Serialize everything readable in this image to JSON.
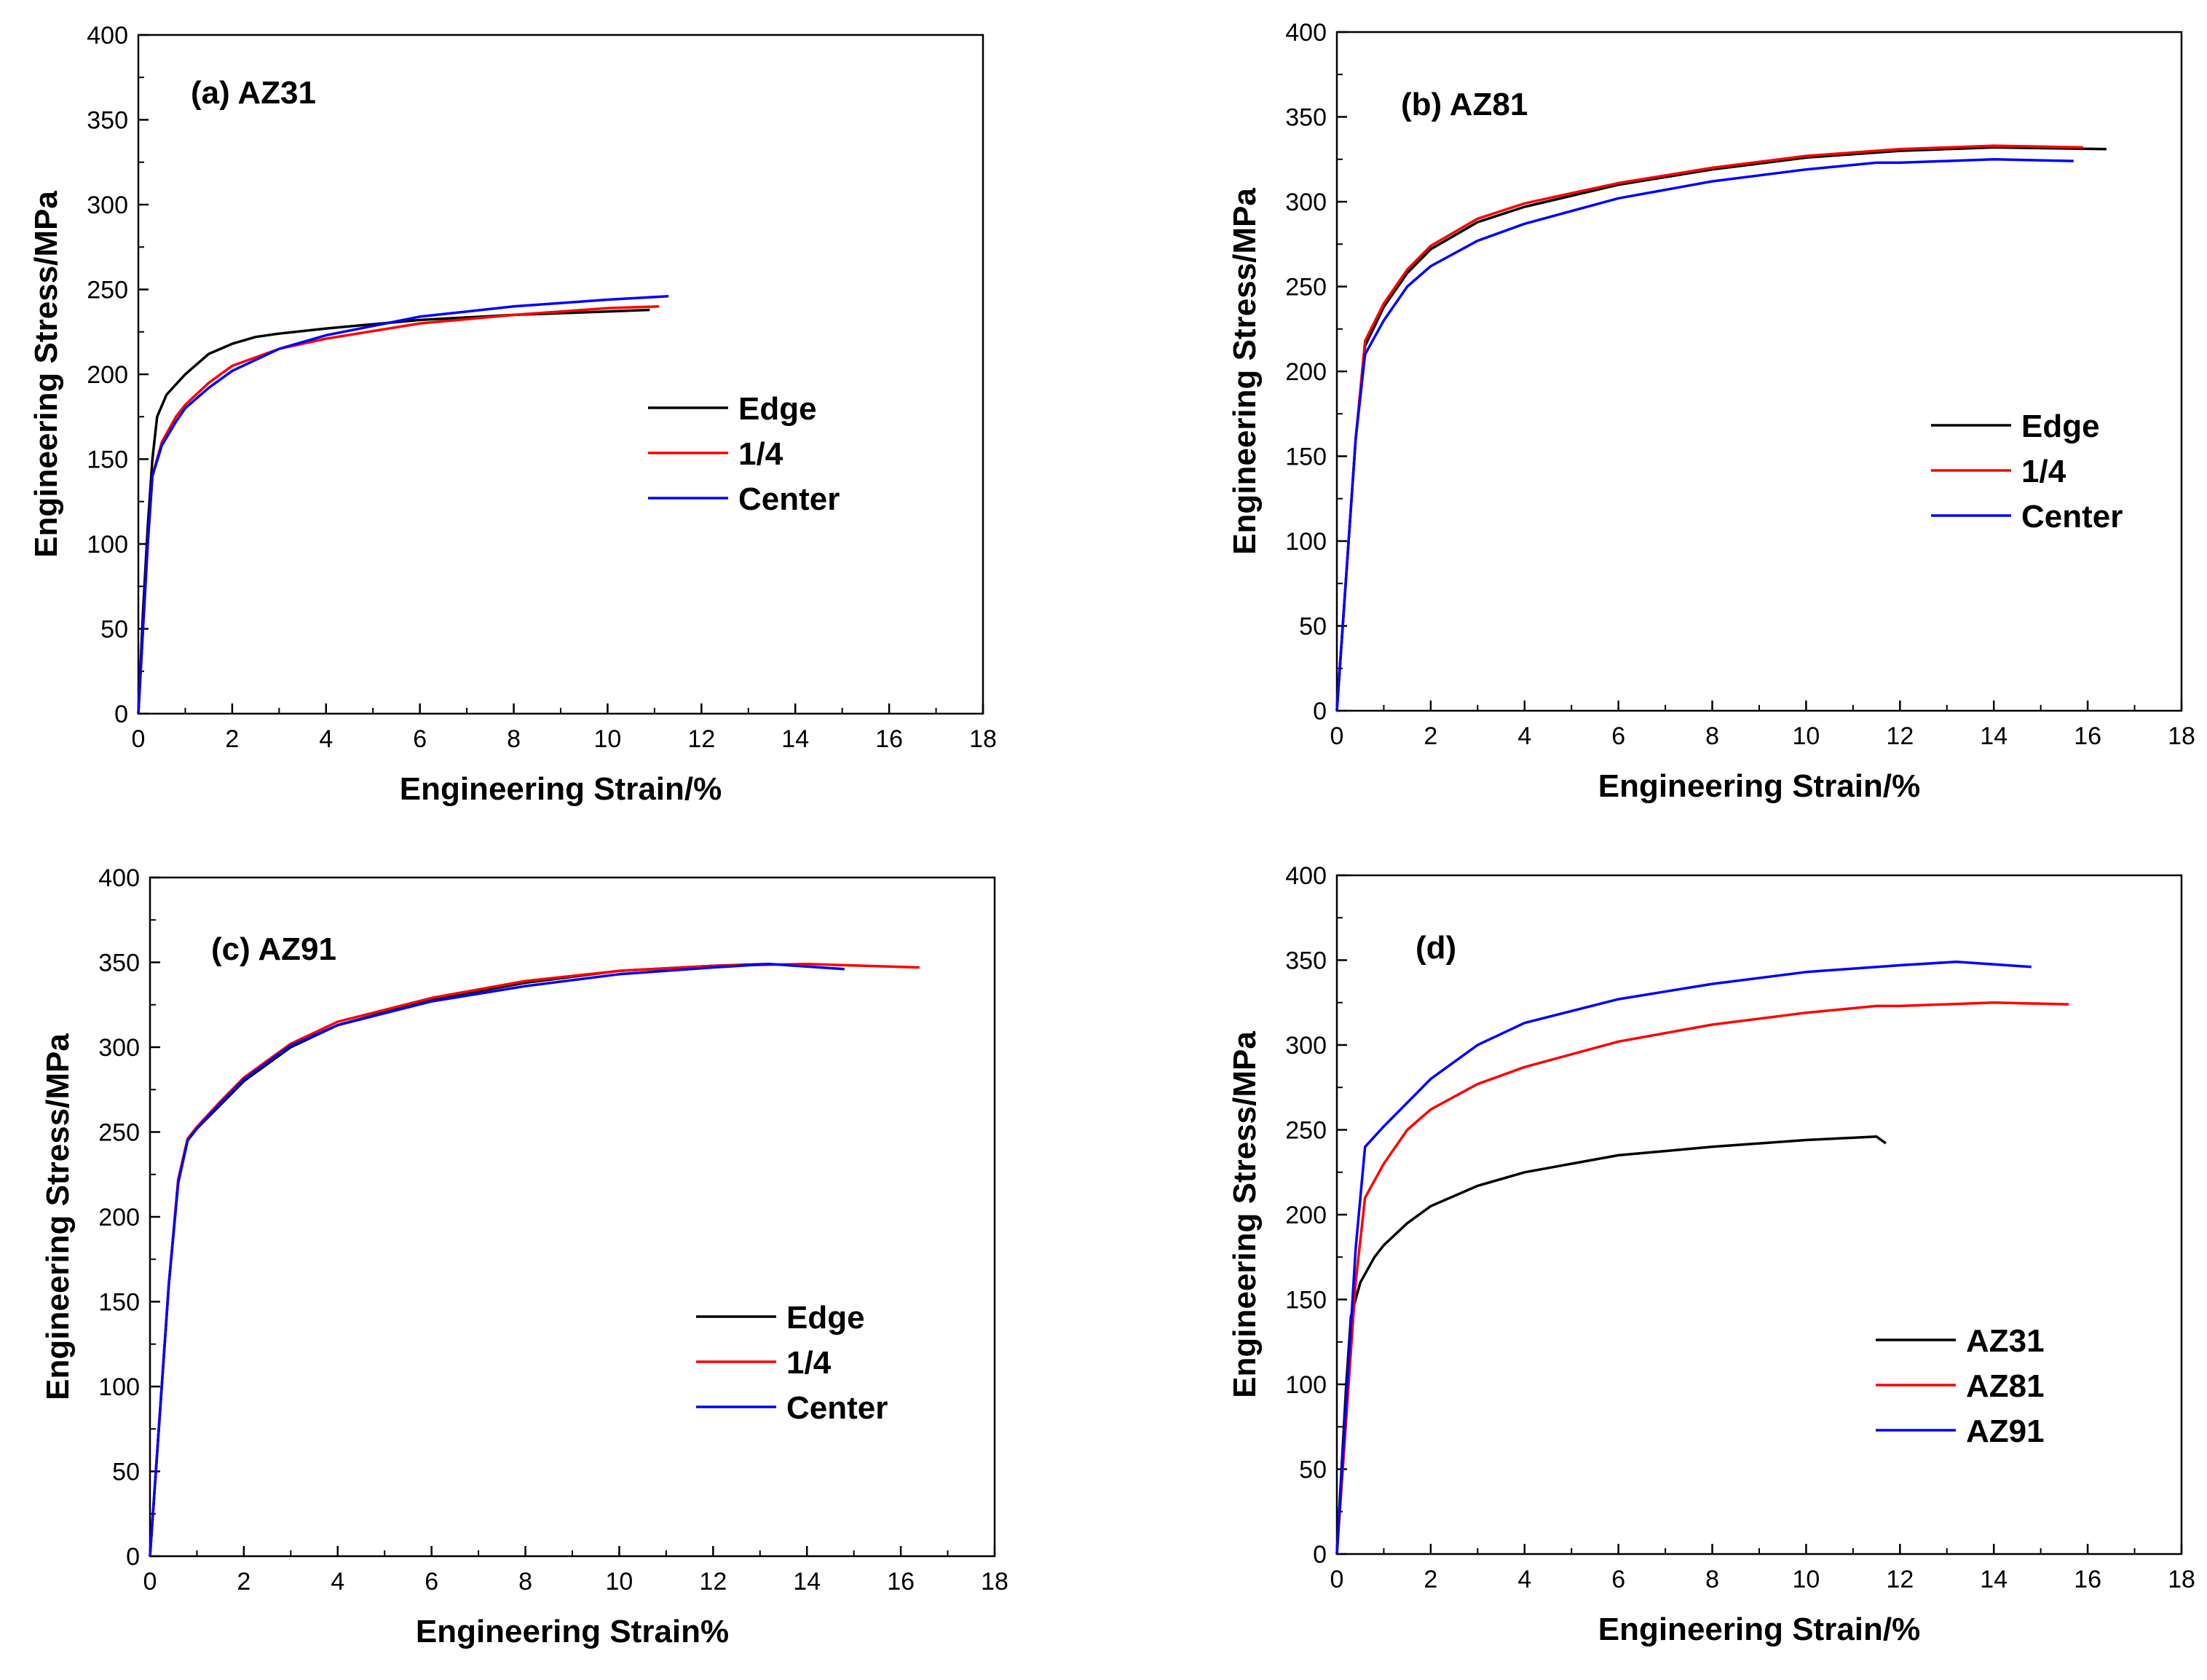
{
  "colors": {
    "black": "#000000",
    "red": "#ff0000",
    "blue": "#0000ff"
  },
  "chart_data": [
    {
      "type": "line",
      "title": "(a) AZ31",
      "xlabel": "Engineering Strain/%",
      "ylabel": "Engineering Stress/MPa",
      "xlim": [
        0,
        18
      ],
      "ylim": [
        0,
        400
      ],
      "xticks": [
        "0",
        "2",
        "4",
        "6",
        "8",
        "10",
        "12",
        "14",
        "16",
        "18"
      ],
      "yticks": [
        "0",
        "50",
        "100",
        "150",
        "200",
        "250",
        "300",
        "350",
        "400"
      ],
      "legend_position": "middle-right",
      "series": [
        {
          "name": "Edge",
          "color": "#000000",
          "x": [
            0,
            0.1,
            0.2,
            0.3,
            0.4,
            0.6,
            1,
            1.5,
            2,
            2.5,
            3,
            4,
            6,
            8,
            10,
            10.9
          ],
          "y": [
            0,
            60,
            110,
            150,
            175,
            188,
            200,
            212,
            218,
            222,
            224,
            227,
            232,
            235,
            237,
            238
          ]
        },
        {
          "name": "1/4",
          "color": "#ff0000",
          "x": [
            0,
            0.1,
            0.2,
            0.3,
            0.5,
            0.8,
            1,
            1.5,
            2,
            3,
            4,
            6,
            8,
            10,
            11.1
          ],
          "y": [
            0,
            50,
            100,
            140,
            160,
            175,
            182,
            195,
            205,
            215,
            221,
            230,
            235,
            239,
            240
          ]
        },
        {
          "name": "Center",
          "color": "#0000ff",
          "x": [
            0,
            0.1,
            0.2,
            0.3,
            0.5,
            0.8,
            1,
            1.5,
            2,
            3,
            4,
            6,
            8,
            10,
            11.3
          ],
          "y": [
            0,
            50,
            100,
            140,
            158,
            172,
            180,
            192,
            202,
            215,
            223,
            234,
            240,
            244,
            246
          ]
        }
      ]
    },
    {
      "type": "line",
      "title": "(b) AZ81",
      "xlabel": "Engineering Strain/%",
      "ylabel": "Engineering Stress/MPa",
      "xlim": [
        0,
        18
      ],
      "ylim": [
        0,
        400
      ],
      "xticks": [
        "0",
        "2",
        "4",
        "6",
        "8",
        "10",
        "12",
        "14",
        "16",
        "18"
      ],
      "yticks": [
        "0",
        "50",
        "100",
        "150",
        "200",
        "250",
        "300",
        "350",
        "400"
      ],
      "legend_position": "middle-right",
      "series": [
        {
          "name": "Edge",
          "color": "#000000",
          "x": [
            0,
            0.2,
            0.4,
            0.6,
            1,
            1.5,
            2,
            3,
            4,
            6,
            8,
            10,
            12,
            14,
            16.4
          ],
          "y": [
            0,
            80,
            160,
            215,
            238,
            258,
            272,
            288,
            297,
            310,
            319,
            326,
            330,
            332,
            331
          ]
        },
        {
          "name": "1/4",
          "color": "#ff0000",
          "x": [
            0,
            0.2,
            0.4,
            0.6,
            1,
            1.5,
            2,
            3,
            4,
            6,
            8,
            10,
            12,
            14,
            15.9
          ],
          "y": [
            0,
            80,
            160,
            218,
            240,
            260,
            274,
            290,
            299,
            311,
            320,
            327,
            331,
            333,
            332
          ]
        },
        {
          "name": "Center",
          "color": "#0000ff",
          "x": [
            0,
            0.2,
            0.4,
            0.6,
            1,
            1.5,
            2,
            3,
            4,
            6,
            8,
            10,
            11.5,
            12,
            14,
            15.7
          ],
          "y": [
            0,
            80,
            160,
            210,
            230,
            250,
            262,
            277,
            287,
            302,
            312,
            319,
            323,
            323,
            325,
            324
          ]
        }
      ]
    },
    {
      "type": "line",
      "title": "(c) AZ91",
      "xlabel": "Engineering Strain%",
      "ylabel": "Engineering Stress/MPa",
      "xlim": [
        0,
        18
      ],
      "ylim": [
        0,
        400
      ],
      "xticks": [
        "0",
        "2",
        "4",
        "6",
        "8",
        "10",
        "12",
        "14",
        "16",
        "18"
      ],
      "yticks": [
        "0",
        "50",
        "100",
        "150",
        "200",
        "250",
        "300",
        "350",
        "400"
      ],
      "legend_position": "bottom-right",
      "series": [
        {
          "name": "Edge",
          "color": "#000000",
          "x": [
            0,
            0.2,
            0.4,
            0.6,
            0.8,
            1,
            1.5,
            2,
            3,
            4,
            6,
            8,
            10,
            12,
            13.2
          ],
          "y": [
            0,
            80,
            160,
            220,
            245,
            252,
            266,
            280,
            300,
            313,
            328,
            338,
            345,
            348,
            349
          ]
        },
        {
          "name": "1/4",
          "color": "#ff0000",
          "x": [
            0,
            0.2,
            0.4,
            0.6,
            0.8,
            1,
            1.5,
            2,
            3,
            4,
            6,
            8,
            10,
            12,
            14,
            16.4
          ],
          "y": [
            0,
            80,
            160,
            222,
            246,
            253,
            268,
            282,
            302,
            315,
            329,
            339,
            345,
            348,
            349,
            347
          ]
        },
        {
          "name": "Center",
          "color": "#0000ff",
          "x": [
            0,
            0.2,
            0.4,
            0.6,
            0.8,
            1,
            1.5,
            2,
            3,
            4,
            6,
            8,
            10,
            12,
            13.2,
            14.8
          ],
          "y": [
            0,
            80,
            160,
            220,
            245,
            252,
            267,
            281,
            301,
            313,
            327,
            336,
            343,
            347,
            349,
            346
          ]
        }
      ]
    },
    {
      "type": "line",
      "title": "(d)",
      "xlabel": "Engineering Strain/%",
      "ylabel": "Engineering Stress/MPa",
      "xlim": [
        0,
        18
      ],
      "ylim": [
        0,
        400
      ],
      "xticks": [
        "0",
        "2",
        "4",
        "6",
        "8",
        "10",
        "12",
        "14",
        "16",
        "18"
      ],
      "yticks": [
        "0",
        "50",
        "100",
        "150",
        "200",
        "250",
        "300",
        "350",
        "400"
      ],
      "legend_position": "bottom-right",
      "series": [
        {
          "name": "AZ31",
          "color": "#000000",
          "x": [
            0,
            0.1,
            0.2,
            0.3,
            0.5,
            0.8,
            1,
            1.5,
            2,
            3,
            4,
            6,
            8,
            10,
            11.5,
            11.7
          ],
          "y": [
            0,
            50,
            100,
            140,
            160,
            175,
            182,
            195,
            205,
            217,
            225,
            235,
            240,
            244,
            246,
            242
          ]
        },
        {
          "name": "AZ81",
          "color": "#ff0000",
          "x": [
            0,
            0.2,
            0.4,
            0.6,
            1,
            1.5,
            2,
            3,
            4,
            6,
            8,
            10,
            11.5,
            12,
            14,
            15.6
          ],
          "y": [
            0,
            80,
            160,
            210,
            230,
            250,
            262,
            277,
            287,
            302,
            312,
            319,
            323,
            323,
            325,
            324
          ]
        },
        {
          "name": "AZ91",
          "color": "#0000ff",
          "x": [
            0,
            0.2,
            0.4,
            0.6,
            1,
            1.5,
            2,
            3,
            4,
            6,
            8,
            10,
            12,
            13.2,
            14.8
          ],
          "y": [
            0,
            90,
            180,
            240,
            252,
            266,
            280,
            300,
            313,
            327,
            336,
            343,
            347,
            349,
            346
          ]
        }
      ]
    }
  ]
}
